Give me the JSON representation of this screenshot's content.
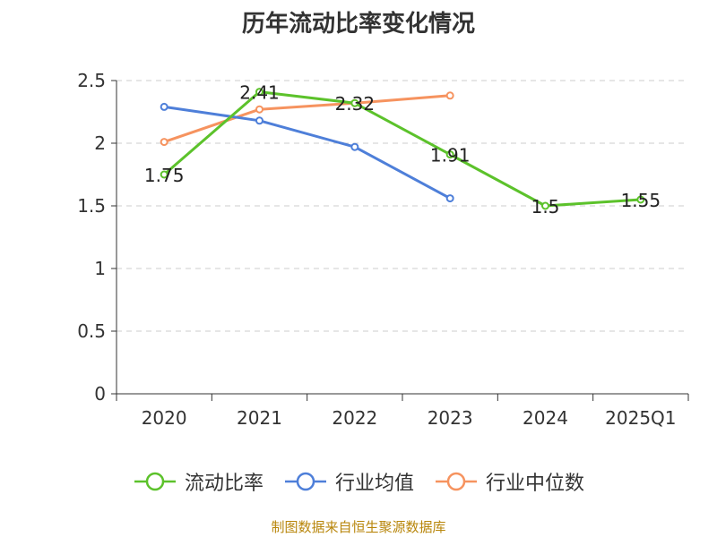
{
  "chart_data": {
    "type": "line",
    "title": "历年流动比率变化情况",
    "categories": [
      "2020",
      "2021",
      "2022",
      "2023",
      "2024",
      "2025Q1"
    ],
    "ylim": [
      0,
      2.5
    ],
    "yticks": [
      "0",
      "0.5",
      "1",
      "1.5",
      "2",
      "2.5"
    ],
    "grid": true,
    "legend_position": "bottom",
    "series": [
      {
        "name": "流动比率",
        "color": "#5cc22b",
        "values": [
          1.75,
          2.41,
          2.32,
          1.91,
          1.5,
          1.55
        ],
        "labels": [
          "1.75",
          "2.41",
          "2.32",
          "1.91",
          "1.5",
          "1.55"
        ]
      },
      {
        "name": "行业均值",
        "color": "#4e7fd9",
        "values": [
          2.29,
          2.18,
          1.97,
          1.56,
          null,
          null
        ]
      },
      {
        "name": "行业中位数",
        "color": "#f6935f",
        "values": [
          2.01,
          2.27,
          2.32,
          2.38,
          null,
          null
        ]
      }
    ]
  },
  "footer": {
    "source": "制图数据来自恒生聚源数据库"
  }
}
